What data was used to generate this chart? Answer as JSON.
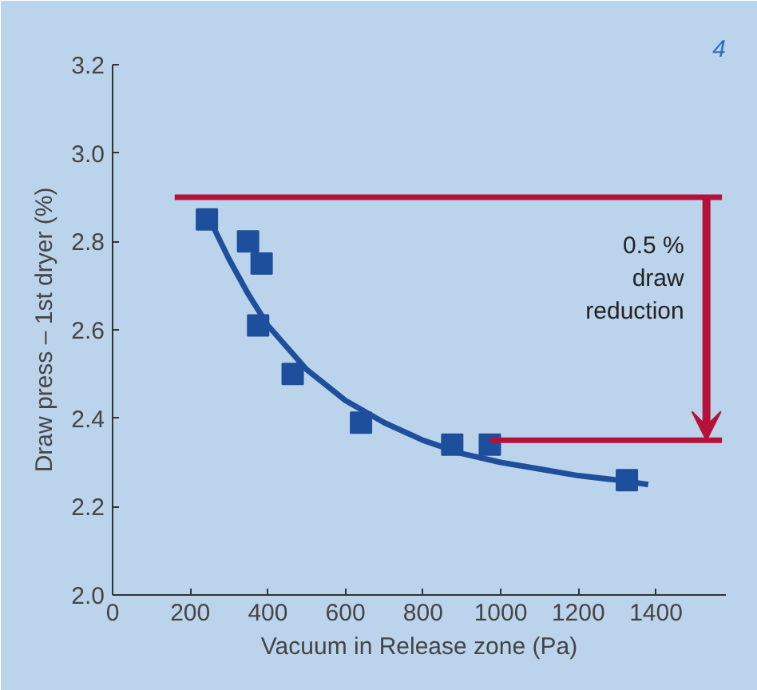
{
  "chart_data": {
    "type": "scatter",
    "xlabel": "Vacuum in Release zone (Pa)",
    "ylabel": "Draw press – 1st dryer (%)",
    "xlim": [
      0,
      1580
    ],
    "ylim": [
      2.0,
      3.2
    ],
    "xticks": [
      0,
      200,
      400,
      600,
      800,
      1000,
      1200,
      1400
    ],
    "yticks": [
      {
        "value": 2.0,
        "label": "2.0"
      },
      2.2,
      2.4,
      2.6,
      2.8,
      {
        "value": 3.0,
        "label": "3.0"
      },
      3.2
    ],
    "grid": false,
    "series": [
      {
        "marker": "square",
        "color": "#1d4f9c",
        "x": [
          243,
          349,
          384,
          375,
          464,
          640,
          875,
          972,
          1325
        ],
        "values": [
          2.85,
          2.8,
          2.75,
          2.61,
          2.5,
          2.39,
          2.34,
          2.34,
          2.26
        ]
      },
      {
        "type": "line",
        "color": "#1d4f9c",
        "x": [
          250,
          300,
          350,
          400,
          500,
          600,
          700,
          800,
          900,
          1000,
          1100,
          1200,
          1300,
          1380
        ],
        "values": [
          2.85,
          2.76,
          2.68,
          2.61,
          2.51,
          2.44,
          2.39,
          2.35,
          2.32,
          2.3,
          2.285,
          2.27,
          2.26,
          2.25
        ]
      },
      {
        "type": "line",
        "color": "#b5123a",
        "x": [
          160,
          1570
        ],
        "values": [
          2.9,
          2.9
        ]
      },
      {
        "type": "line",
        "color": "#b5123a",
        "x": [
          972,
          1570
        ],
        "values": [
          2.35,
          2.35
        ]
      }
    ],
    "annotations": [
      "0.5 %\ndraw\nreduction",
      "4"
    ]
  }
}
